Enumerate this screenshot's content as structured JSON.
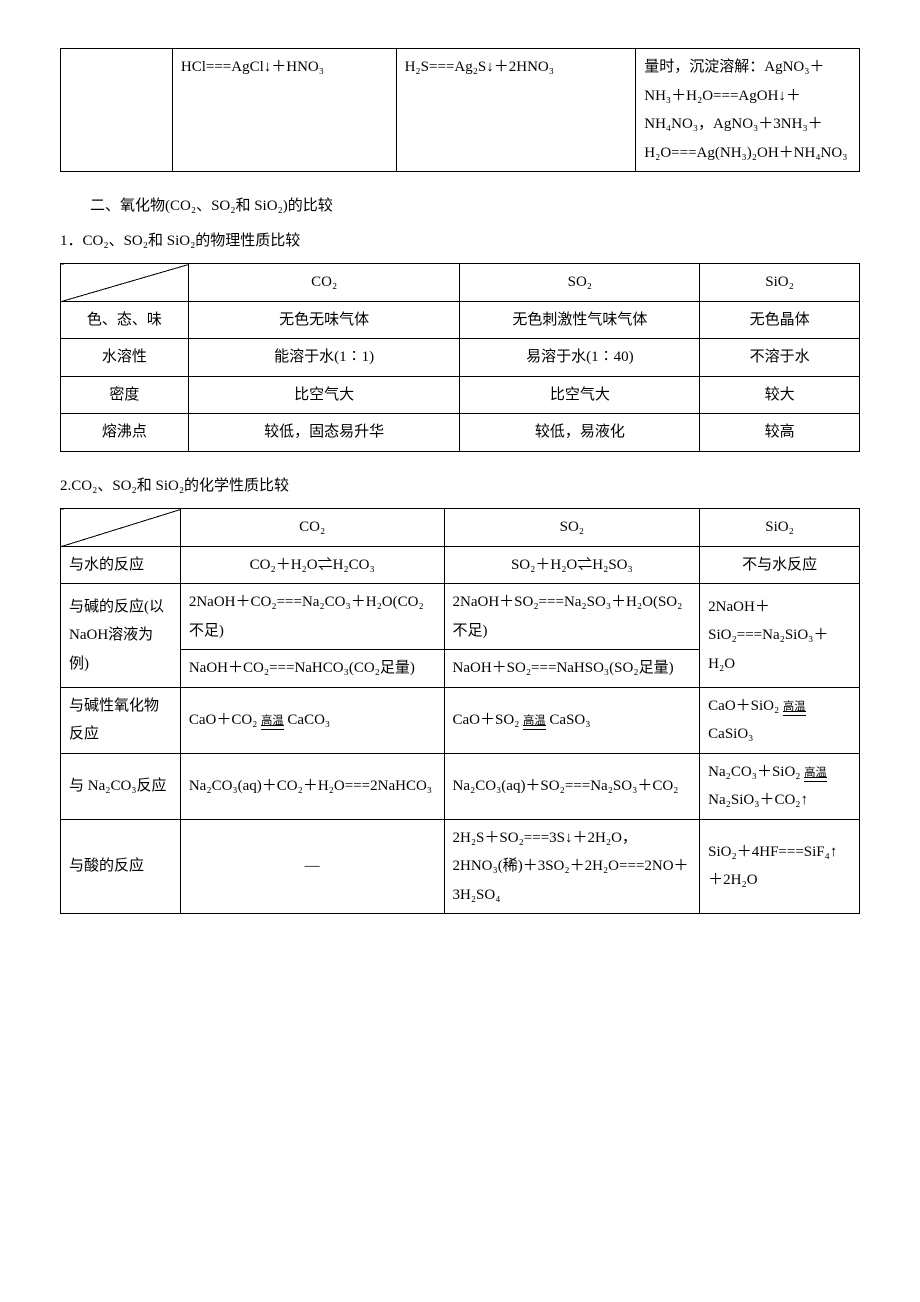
{
  "cont_table": {
    "row": {
      "c1": "",
      "c2": "HCl===AgCl↓＋HNO₃",
      "c3": "H₂S===Ag₂S↓＋2HNO₃",
      "c4": "量时，沉淀溶解：AgNO₃＋NH₃＋H₂O===AgOH↓＋NH₄NO₃，AgNO₃＋3NH₃＋H₂O===Ag(NH₃)₂OH＋NH₄NO₃"
    }
  },
  "section2": {
    "title": "二、氧化物(CO₂、SO₂和 SiO₂)的比较",
    "phys_title": "1．CO₂、SO₂和 SiO₂的物理性质比较",
    "chem_title": "2.CO₂、SO₂和 SiO₂的化学性质比较"
  },
  "phys_table": {
    "headers": [
      "",
      "CO₂",
      "SO₂",
      "SiO₂"
    ],
    "rows": [
      {
        "label": "色、态、味",
        "co2": "无色无味气体",
        "so2": "无色刺激性气味气体",
        "sio2": "无色晶体"
      },
      {
        "label": "水溶性",
        "co2": "能溶于水(1∶1)",
        "so2": "易溶于水(1∶40)",
        "sio2": "不溶于水"
      },
      {
        "label": "密度",
        "co2": "比空气大",
        "so2": "比空气大",
        "sio2": "较大"
      },
      {
        "label": "熔沸点",
        "co2": "较低，固态易升华",
        "so2": "较低，易液化",
        "sio2": "较高"
      }
    ]
  },
  "chem_table": {
    "headers": [
      "",
      "CO₂",
      "SO₂",
      "SiO₂"
    ],
    "anno_high_temp": "高温",
    "rows": {
      "water": {
        "label": "与水的反应",
        "co2": "CO₂＋H₂O⇌H₂CO₃",
        "so2": "SO₂＋H₂O⇌H₂SO₃",
        "sio2": "不与水反应"
      },
      "base_a": {
        "label_a": "与碱的反应(以 NaOH溶液为例)",
        "co2_a": "2NaOH＋CO₂===Na₂CO₃＋H₂O(CO₂不足)",
        "so2_a": "2NaOH＋SO₂===Na₂SO₃＋H₂O(SO₂不足)",
        "sio2": "2NaOH＋SiO₂===Na₂SiO₃＋H₂O",
        "co2_b": "NaOH＋CO₂===NaHCO₃(CO₂足量)",
        "so2_b": "NaOH＋SO₂===NaHSO₃(SO₂足量)"
      },
      "basic_ox": {
        "label": "与碱性氧化物反应",
        "co2_pre": "CaO＋CO₂ ",
        "co2_post": " CaCO₃",
        "so2_pre": "CaO＋SO₂ ",
        "so2_post": " CaSO₃",
        "sio2_pre": "CaO＋SiO₂",
        "sio2_post": " CaSiO₃"
      },
      "na2co3": {
        "label": "与 Na₂CO₃反应",
        "co2": "Na₂CO₃(aq)＋CO₂＋H₂O===2NaHCO₃",
        "so2": "Na₂CO₃(aq)＋SO₂===Na₂SO₃＋CO₂",
        "sio2_pre": "Na₂CO₃＋SiO₂",
        "sio2_post": " Na₂SiO₃＋CO₂↑"
      },
      "acid": {
        "label": "与酸的反应",
        "co2": "—",
        "so2": "2H₂S＋SO₂===3S↓＋2H₂O，2HNO₃(稀)＋3SO₂＋2H₂O===2NO＋3H₂SO₄",
        "sio2": "SiO₂＋4HF===SiF₄↑＋2H₂O"
      }
    }
  }
}
